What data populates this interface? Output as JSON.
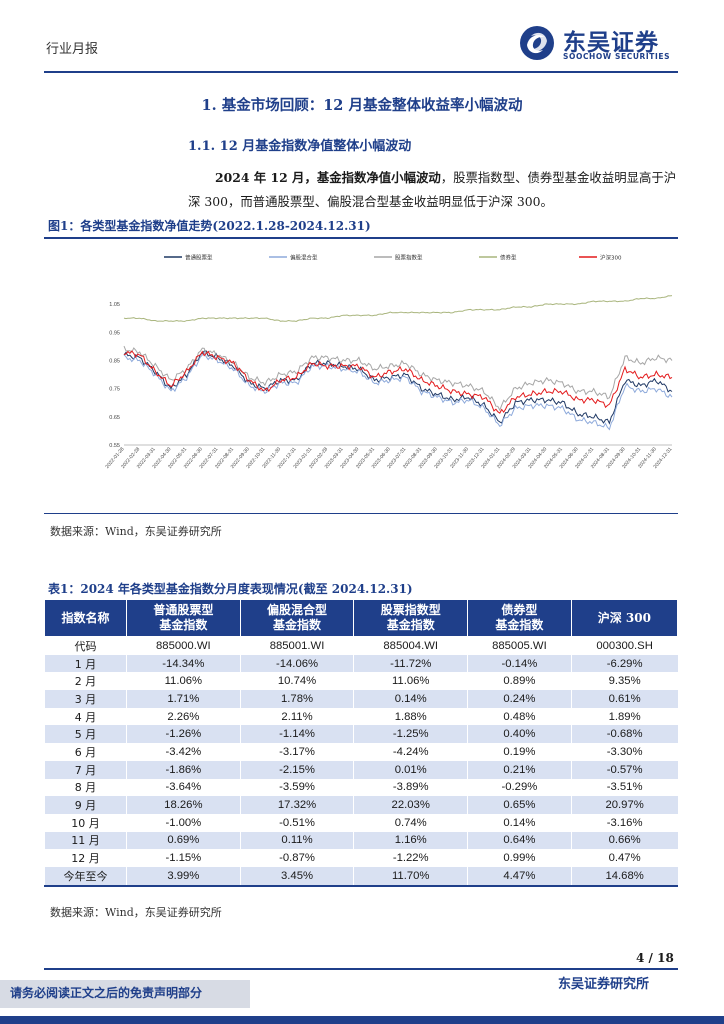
{
  "header": {
    "category_label": "行业月报",
    "logo_cn": "东吴证券",
    "logo_en": "SOOCHOW SECURITIES"
  },
  "section": {
    "h1": "1.  基金市场回顾：12 月基金整体收益率小幅波动",
    "h2": "1.1.   12 月基金指数净值整体小幅波动",
    "para_lead": "2024 年 12 月，",
    "para_bold": "基金指数净值小幅波动",
    "para_rest1": "，股票指数型、债券型基金收益明显高于沪",
    "para_line2": "深 300，而普通股票型、偏股混合型基金收益明显低于沪深 300。"
  },
  "figure": {
    "caption": "图1：各类型基金指数净值走势(2022.1.28-2024.12.31)",
    "source": "数据来源：Wind，东吴证券研究所"
  },
  "chart_data": {
    "type": "line",
    "title": "",
    "xlabel": "",
    "ylabel": "",
    "ylim": [
      0.55,
      1.1
    ],
    "y_ticks": [
      "0.55",
      "0.65",
      "0.75",
      "0.85",
      "0.95",
      "1.05"
    ],
    "x_ticks": [
      "2022-01-28",
      "2022-02-28",
      "2022-03-31",
      "2022-04-30",
      "2022-05-31",
      "2022-06-30",
      "2022-07-31",
      "2022-08-31",
      "2022-09-30",
      "2022-10-31",
      "2022-11-30",
      "2022-12-31",
      "2023-01-31",
      "2023-02-28",
      "2023-03-31",
      "2023-04-30",
      "2023-05-31",
      "2023-06-30",
      "2023-07-31",
      "2023-08-31",
      "2023-09-30",
      "2023-10-31",
      "2023-11-30",
      "2023-12-31",
      "2024-01-31",
      "2024-02-29",
      "2024-03-31",
      "2024-04-30",
      "2024-05-31",
      "2024-06-30",
      "2024-07-31",
      "2024-08-31",
      "2024-09-30",
      "2024-10-31",
      "2024-11-30",
      "2024-12-31"
    ],
    "legend_position": "top",
    "series": [
      {
        "name": "普通股票型",
        "color": "#1f3864",
        "values": [
          0.87,
          0.86,
          0.81,
          0.75,
          0.8,
          0.88,
          0.86,
          0.83,
          0.77,
          0.75,
          0.78,
          0.78,
          0.84,
          0.84,
          0.83,
          0.82,
          0.78,
          0.79,
          0.8,
          0.75,
          0.73,
          0.71,
          0.72,
          0.69,
          0.63,
          0.7,
          0.71,
          0.71,
          0.7,
          0.66,
          0.65,
          0.63,
          0.78,
          0.76,
          0.78,
          0.74
        ]
      },
      {
        "name": "偏股混合型",
        "color": "#8eaadb",
        "values": [
          0.86,
          0.85,
          0.8,
          0.74,
          0.79,
          0.87,
          0.85,
          0.82,
          0.76,
          0.74,
          0.77,
          0.77,
          0.83,
          0.83,
          0.82,
          0.81,
          0.77,
          0.78,
          0.79,
          0.74,
          0.72,
          0.7,
          0.71,
          0.68,
          0.62,
          0.68,
          0.69,
          0.69,
          0.68,
          0.64,
          0.63,
          0.61,
          0.76,
          0.74,
          0.75,
          0.72
        ]
      },
      {
        "name": "股票指数型",
        "color": "#a6a6a6",
        "values": [
          0.89,
          0.88,
          0.83,
          0.78,
          0.82,
          0.89,
          0.87,
          0.84,
          0.79,
          0.77,
          0.8,
          0.81,
          0.86,
          0.86,
          0.85,
          0.85,
          0.82,
          0.83,
          0.84,
          0.8,
          0.78,
          0.77,
          0.76,
          0.74,
          0.68,
          0.75,
          0.77,
          0.78,
          0.77,
          0.74,
          0.74,
          0.72,
          0.86,
          0.84,
          0.86,
          0.85
        ]
      },
      {
        "name": "债券型",
        "color": "#a9b57d",
        "values": [
          1.0,
          1.0,
          0.99,
          0.99,
          0.99,
          1.0,
          1.0,
          1.0,
          1.0,
          1.0,
          0.99,
          0.99,
          1.0,
          1.0,
          1.01,
          1.01,
          1.01,
          1.02,
          1.02,
          1.02,
          1.02,
          1.02,
          1.03,
          1.03,
          1.03,
          1.04,
          1.04,
          1.05,
          1.05,
          1.05,
          1.06,
          1.06,
          1.06,
          1.07,
          1.07,
          1.08
        ]
      },
      {
        "name": "沪深300",
        "color": "#e31a1c",
        "values": [
          0.88,
          0.87,
          0.81,
          0.76,
          0.81,
          0.88,
          0.86,
          0.84,
          0.78,
          0.74,
          0.78,
          0.79,
          0.84,
          0.83,
          0.83,
          0.83,
          0.79,
          0.81,
          0.82,
          0.78,
          0.76,
          0.74,
          0.73,
          0.72,
          0.66,
          0.72,
          0.73,
          0.74,
          0.74,
          0.71,
          0.71,
          0.69,
          0.82,
          0.79,
          0.8,
          0.79
        ]
      }
    ]
  },
  "table": {
    "caption": "表1：2024 年各类型基金指数分月度表现情况(截至 2024.12.31)",
    "source": "数据来源：Wind，东吴证券研究所",
    "header_first": "指数名称",
    "headers": [
      {
        "l1": "普通股票型",
        "l2": "基金指数"
      },
      {
        "l1": "偏股混合型",
        "l2": "基金指数"
      },
      {
        "l1": "股票指数型",
        "l2": "基金指数"
      },
      {
        "l1": "债券型",
        "l2": "基金指数"
      },
      {
        "l1": "沪深 300",
        "l2": ""
      }
    ],
    "rows": [
      {
        "label": "代码",
        "cells": [
          "885000.WI",
          "885001.WI",
          "885004.WI",
          "885005.WI",
          "000300.SH"
        ]
      },
      {
        "label": "1 月",
        "cells": [
          "-14.34%",
          "-14.06%",
          "-11.72%",
          "-0.14%",
          "-6.29%"
        ]
      },
      {
        "label": "2 月",
        "cells": [
          "11.06%",
          "10.74%",
          "11.06%",
          "0.89%",
          "9.35%"
        ]
      },
      {
        "label": "3 月",
        "cells": [
          "1.71%",
          "1.78%",
          "0.14%",
          "0.24%",
          "0.61%"
        ]
      },
      {
        "label": "4 月",
        "cells": [
          "2.26%",
          "2.11%",
          "1.88%",
          "0.48%",
          "1.89%"
        ]
      },
      {
        "label": "5 月",
        "cells": [
          "-1.26%",
          "-1.14%",
          "-1.25%",
          "0.40%",
          "-0.68%"
        ]
      },
      {
        "label": "6 月",
        "cells": [
          "-3.42%",
          "-3.17%",
          "-4.24%",
          "0.19%",
          "-3.30%"
        ]
      },
      {
        "label": "7 月",
        "cells": [
          "-1.86%",
          "-2.15%",
          "0.01%",
          "0.21%",
          "-0.57%"
        ]
      },
      {
        "label": "8 月",
        "cells": [
          "-3.64%",
          "-3.59%",
          "-3.89%",
          "-0.29%",
          "-3.51%"
        ]
      },
      {
        "label": "9 月",
        "cells": [
          "18.26%",
          "17.32%",
          "22.03%",
          "0.65%",
          "20.97%"
        ]
      },
      {
        "label": "10 月",
        "cells": [
          "-1.00%",
          "-0.51%",
          "0.74%",
          "0.14%",
          "-3.16%"
        ]
      },
      {
        "label": "11 月",
        "cells": [
          "0.69%",
          "0.11%",
          "1.16%",
          "0.64%",
          "0.66%"
        ]
      },
      {
        "label": "12 月",
        "cells": [
          "-1.15%",
          "-0.87%",
          "-1.22%",
          "0.99%",
          "0.47%"
        ]
      },
      {
        "label": "今年至今",
        "cells": [
          "3.99%",
          "3.45%",
          "11.70%",
          "4.47%",
          "14.68%"
        ]
      }
    ]
  },
  "footer": {
    "page": "4 / 18",
    "disclaimer": "请务必阅读正文之后的免责声明部分",
    "firm": "东吴证券研究所"
  },
  "colors": {
    "brand_blue": "#1f3f8a",
    "table_alt_row": "#d9e1f2"
  }
}
